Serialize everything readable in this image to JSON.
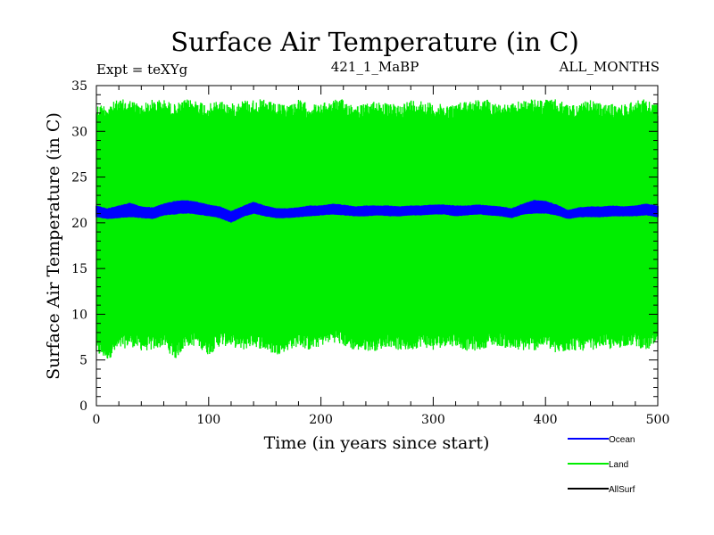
{
  "chart_data": {
    "type": "line",
    "title": "Surface Air Temperature (in C)",
    "subtitle_left": "Expt = teXYg",
    "subtitle_center": "421_1_MaBP",
    "subtitle_right": "ALL_MONTHS",
    "xlabel": "Time (in years since start)",
    "ylabel": "Surface Air Temperature (in C)",
    "xlim": [
      0,
      500
    ],
    "ylim": [
      0,
      35
    ],
    "x_ticks": [
      0,
      100,
      200,
      300,
      400,
      500
    ],
    "y_ticks": [
      0,
      5,
      10,
      15,
      20,
      25,
      30,
      35
    ],
    "grid": false,
    "legend_position": "bottom-right",
    "series": [
      {
        "name": "Ocean",
        "color": "#0000ff",
        "band": {
          "x": [
            0,
            10,
            20,
            30,
            40,
            50,
            60,
            70,
            80,
            90,
            100,
            110,
            120,
            130,
            140,
            150,
            160,
            170,
            180,
            190,
            200,
            210,
            220,
            230,
            240,
            250,
            260,
            270,
            280,
            290,
            300,
            310,
            320,
            330,
            340,
            350,
            360,
            370,
            380,
            390,
            400,
            410,
            420,
            430,
            440,
            450,
            460,
            470,
            480,
            490,
            500
          ],
          "low": [
            20.6,
            20.4,
            20.5,
            20.6,
            20.5,
            20.4,
            20.8,
            20.9,
            21.0,
            20.9,
            20.7,
            20.5,
            20.0,
            20.6,
            21.0,
            20.7,
            20.5,
            20.5,
            20.6,
            20.7,
            20.8,
            20.9,
            20.8,
            20.7,
            20.7,
            20.8,
            20.7,
            20.7,
            20.8,
            20.8,
            20.9,
            20.9,
            20.7,
            20.8,
            20.9,
            20.8,
            20.7,
            20.5,
            20.9,
            21.0,
            21.0,
            20.8,
            20.4,
            20.6,
            20.6,
            20.6,
            20.7,
            20.7,
            20.7,
            20.8,
            20.6
          ],
          "high": [
            21.9,
            21.6,
            21.9,
            22.2,
            21.8,
            21.7,
            22.1,
            22.4,
            22.5,
            22.3,
            22.0,
            21.8,
            21.3,
            21.8,
            22.3,
            21.9,
            21.6,
            21.6,
            21.7,
            21.9,
            21.9,
            22.1,
            22.0,
            21.8,
            21.9,
            21.9,
            21.9,
            21.8,
            21.9,
            21.9,
            22.0,
            22.0,
            21.9,
            21.9,
            22.0,
            21.9,
            21.8,
            21.6,
            22.1,
            22.5,
            22.4,
            22.0,
            21.4,
            21.7,
            21.8,
            21.8,
            21.9,
            21.8,
            21.9,
            22.1,
            21.9
          ]
        }
      },
      {
        "name": "Land",
        "color": "#00ee00",
        "band": {
          "x": [
            0,
            10,
            20,
            30,
            40,
            50,
            60,
            70,
            80,
            90,
            100,
            110,
            120,
            130,
            140,
            150,
            160,
            170,
            180,
            190,
            200,
            210,
            220,
            230,
            240,
            250,
            260,
            270,
            280,
            290,
            300,
            310,
            320,
            330,
            340,
            350,
            360,
            370,
            380,
            390,
            400,
            410,
            420,
            430,
            440,
            450,
            460,
            470,
            480,
            490,
            500
          ],
          "low": [
            5.5,
            5.0,
            6.0,
            6.5,
            6.0,
            6.0,
            6.5,
            5.0,
            6.5,
            6.5,
            5.5,
            6.5,
            6.5,
            6.0,
            6.5,
            6.0,
            5.5,
            6.0,
            6.5,
            6.0,
            6.5,
            7.0,
            6.5,
            6.0,
            6.0,
            6.0,
            6.5,
            6.0,
            6.0,
            6.5,
            6.0,
            6.5,
            6.5,
            6.0,
            6.0,
            6.5,
            6.5,
            6.0,
            6.0,
            6.0,
            6.5,
            5.5,
            6.0,
            6.0,
            6.0,
            6.5,
            6.0,
            6.5,
            6.5,
            6.0,
            6.5
          ],
          "high": [
            33.0,
            33.0,
            33.5,
            33.5,
            33.0,
            33.5,
            33.5,
            33.0,
            33.5,
            33.5,
            33.0,
            33.5,
            33.0,
            33.5,
            33.5,
            33.5,
            33.0,
            33.0,
            33.5,
            33.0,
            33.0,
            33.5,
            33.5,
            33.0,
            33.0,
            33.5,
            33.0,
            33.0,
            33.5,
            33.5,
            33.0,
            33.0,
            33.0,
            33.5,
            33.5,
            33.5,
            33.0,
            33.0,
            33.5,
            33.5,
            33.5,
            33.5,
            33.0,
            33.0,
            33.5,
            33.0,
            33.0,
            33.0,
            33.5,
            33.5,
            33.0
          ]
        }
      },
      {
        "name": "AllSurf",
        "color": "#000000"
      }
    ]
  }
}
